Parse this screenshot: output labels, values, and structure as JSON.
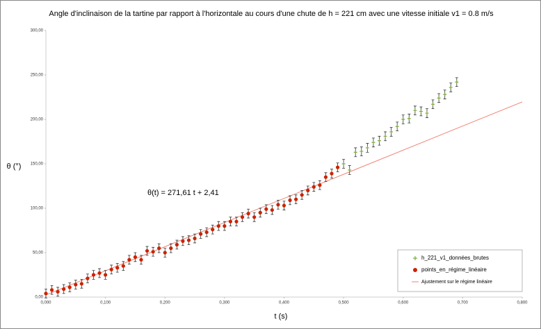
{
  "chart_data": {
    "type": "scatter",
    "title": "Angle d'inclinaison de la tartine par rapport à l'horizontale au cours d'une chute de h = 221 cm avec une vitesse initiale v1 = 0.8 m/s",
    "x_label": "t (s)",
    "y_label": "θ (°)",
    "annotation": "θ(t) = 271,61 t + 2,41",
    "xlim": [
      0,
      0.8
    ],
    "ylim": [
      0,
      300
    ],
    "xticks": [
      {
        "value": 0,
        "label": "0,000"
      },
      {
        "value": 0.1,
        "label": "0,100"
      },
      {
        "value": 0.2,
        "label": "0,200"
      },
      {
        "value": 0.3,
        "label": "0,300"
      },
      {
        "value": 0.4,
        "label": "0,400"
      },
      {
        "value": 0.5,
        "label": "0,500"
      },
      {
        "value": 0.6,
        "label": "0,600"
      },
      {
        "value": 0.7,
        "label": "0,700"
      },
      {
        "value": 0.8,
        "label": "0,800"
      }
    ],
    "yticks": [
      {
        "value": 0,
        "label": "0,00"
      },
      {
        "value": 50,
        "label": "50,00"
      },
      {
        "value": 100,
        "label": "100,00"
      },
      {
        "value": 150,
        "label": "150,00"
      },
      {
        "value": 200,
        "label": "200,00"
      },
      {
        "value": 250,
        "label": "250,00"
      },
      {
        "value": 300,
        "label": "300,00"
      }
    ],
    "legend": "bottom-right",
    "series": [
      {
        "name": "h_221_v1_données_brutes",
        "color": "#7bab3c",
        "marker": "plus",
        "error": 5,
        "x": [
          0,
          0.01,
          0.02,
          0.03,
          0.04,
          0.05,
          0.06,
          0.07,
          0.08,
          0.09,
          0.1,
          0.11,
          0.12,
          0.13,
          0.14,
          0.15,
          0.16,
          0.17,
          0.18,
          0.19,
          0.2,
          0.21,
          0.22,
          0.23,
          0.24,
          0.25,
          0.26,
          0.27,
          0.28,
          0.29,
          0.3,
          0.31,
          0.32,
          0.33,
          0.34,
          0.35,
          0.36,
          0.37,
          0.38,
          0.39,
          0.4,
          0.41,
          0.42,
          0.43,
          0.44,
          0.45,
          0.46,
          0.47,
          0.48,
          0.49,
          0.5,
          0.51,
          0.52,
          0.53,
          0.54,
          0.55,
          0.56,
          0.57,
          0.58,
          0.59,
          0.6,
          0.61,
          0.62,
          0.63,
          0.64,
          0.65,
          0.66,
          0.67,
          0.68,
          0.69
        ],
        "values": [
          4,
          8,
          6,
          9,
          11,
          14,
          15,
          21,
          25,
          27,
          25,
          31,
          33,
          35,
          42,
          45,
          42,
          52,
          51,
          55,
          50,
          55,
          59,
          63,
          64,
          66,
          71,
          73,
          76,
          80,
          80,
          85,
          85,
          90,
          94,
          90,
          95,
          99,
          98,
          104,
          103,
          109,
          110,
          115,
          120,
          124,
          126,
          135,
          139,
          146,
          150,
          143,
          163,
          164,
          168,
          174,
          176,
          181,
          186,
          192,
          200,
          201,
          210,
          209,
          207,
          217,
          224,
          228,
          236,
          242
        ]
      },
      {
        "name": "points_en_régime_linéaire",
        "color": "#cc2200",
        "marker": "dot",
        "x": [
          0,
          0.01,
          0.02,
          0.03,
          0.04,
          0.05,
          0.06,
          0.07,
          0.08,
          0.09,
          0.1,
          0.11,
          0.12,
          0.13,
          0.14,
          0.15,
          0.16,
          0.17,
          0.18,
          0.19,
          0.2,
          0.21,
          0.22,
          0.23,
          0.24,
          0.25,
          0.26,
          0.27,
          0.28,
          0.29,
          0.3,
          0.31,
          0.32,
          0.33,
          0.34,
          0.35,
          0.36,
          0.37,
          0.38,
          0.39,
          0.4,
          0.41,
          0.42,
          0.43,
          0.44,
          0.45,
          0.46,
          0.47,
          0.48,
          0.49
        ],
        "values": [
          4,
          8,
          6,
          9,
          11,
          14,
          15,
          21,
          25,
          27,
          25,
          31,
          33,
          35,
          42,
          45,
          42,
          52,
          51,
          55,
          50,
          55,
          59,
          63,
          64,
          66,
          71,
          73,
          76,
          80,
          80,
          85,
          85,
          90,
          94,
          90,
          95,
          99,
          98,
          104,
          103,
          109,
          110,
          115,
          120,
          124,
          126,
          135,
          139,
          146
        ]
      },
      {
        "name": "Ajustement sur le régime linéaire",
        "color": "#f08070",
        "marker": "line",
        "x": [
          0,
          0.8
        ],
        "values": [
          2.41,
          219.7
        ]
      }
    ]
  }
}
